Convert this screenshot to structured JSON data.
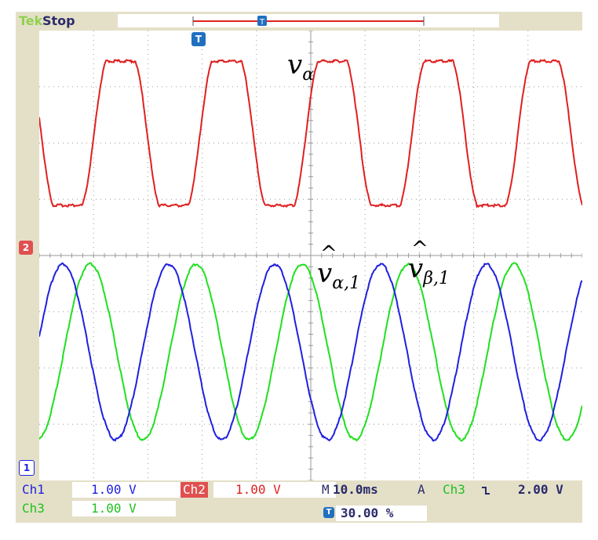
{
  "brand": "Tek",
  "run_state": "Stop",
  "colors": {
    "frame": "#e4e0c8",
    "grid": "#9a9a9a",
    "ch1": "#2020e0",
    "ch2": "#e02020",
    "ch3": "#20e020",
    "brand": "#92d050",
    "accent": "#2070c0"
  },
  "trigger_marker_icon": "T",
  "ch1_marker": "1",
  "ch2_marker": "2",
  "labels": {
    "v_alpha": "v",
    "v_alpha_sub": "α",
    "v_alpha1_hat": "^",
    "v_alpha1": "v",
    "v_alpha1_sub": "α,1",
    "v_beta1_hat": "^",
    "v_beta1": "v",
    "v_beta1_sub": "β,1"
  },
  "readouts": {
    "ch1_name": "Ch1",
    "ch1_scale": "1.00 V",
    "ch2_name": "Ch2",
    "ch2_scale": "1.00 V",
    "ch3_name": "Ch3",
    "ch3_scale": "1.00 V",
    "timebase_prefix": "M",
    "timebase": "10.0ms",
    "trigger_mode": "A",
    "trigger_source": "Ch3",
    "trigger_slope_icon": "falling-edge-icon",
    "trigger_level": "2.00 V",
    "trigger_position": "30.00 %"
  }
}
